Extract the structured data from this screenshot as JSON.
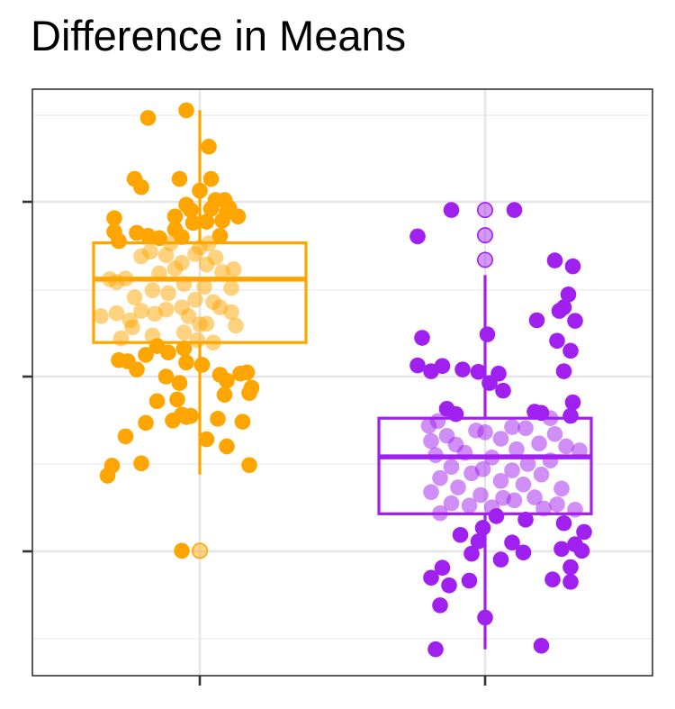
{
  "title": "Difference in Means",
  "chart_data": {
    "type": "box-jitter",
    "title": "Difference in Means",
    "xlabel": "",
    "ylabel": "",
    "x_tick_labels": [],
    "y_tick_labels": [],
    "grid": true,
    "legend": "none",
    "y_unit_note": "values read in pixel-free plot units; 0 = bottom of plot panel, 100 = top",
    "ylim": [
      0,
      100
    ],
    "groups": [
      {
        "color": "#FFA500",
        "box": {
          "lower_whisker": 34.3,
          "q1": 56.8,
          "median": 67.6,
          "q3": 73.8,
          "upper_whisker": 96.4
        },
        "outliers": [
          21.3
        ],
        "points": [
          [
            0.27,
            95.1
          ],
          [
            0.44,
            96.4
          ],
          [
            0.54,
            90.2
          ],
          [
            0.21,
            84.7
          ],
          [
            0.41,
            84.7
          ],
          [
            0.55,
            84.7
          ],
          [
            0.24,
            83.3
          ],
          [
            0.5,
            82.7
          ],
          [
            0.61,
            81.1
          ],
          [
            0.57,
            81.1
          ],
          [
            0.44,
            80.3
          ],
          [
            0.63,
            79.8
          ],
          [
            0.55,
            79.6
          ],
          [
            0.46,
            79.4
          ],
          [
            0.39,
            78.3
          ],
          [
            0.12,
            78.0
          ],
          [
            0.6,
            77.6
          ],
          [
            0.53,
            77.4
          ],
          [
            0.67,
            78.3
          ],
          [
            0.62,
            79.1
          ],
          [
            0.39,
            76.1
          ],
          [
            0.47,
            77.2
          ],
          [
            0.22,
            75.5
          ],
          [
            0.42,
            74.8
          ],
          [
            0.12,
            75.7
          ],
          [
            0.59,
            75.0
          ],
          [
            0.14,
            74.1
          ],
          [
            0.37,
            73.7
          ],
          [
            0.32,
            74.6
          ],
          [
            0.27,
            75.0
          ],
          [
            0.54,
            73.7
          ],
          [
            0.5,
            73.0
          ],
          [
            0.28,
            72.3
          ],
          [
            0.24,
            71.5
          ],
          [
            0.35,
            71.7
          ],
          [
            0.48,
            71.9
          ],
          [
            0.57,
            71.3
          ],
          [
            0.42,
            70.4
          ],
          [
            0.53,
            70.1
          ],
          [
            0.39,
            69.4
          ],
          [
            0.65,
            69.3
          ],
          [
            0.6,
            68.8
          ],
          [
            0.32,
            68.6
          ],
          [
            0.17,
            67.7
          ],
          [
            0.13,
            67.1
          ],
          [
            0.1,
            67.6
          ],
          [
            0.43,
            66.8
          ],
          [
            0.64,
            66.1
          ],
          [
            0.52,
            66.3
          ],
          [
            0.29,
            65.7
          ],
          [
            0.36,
            65.2
          ],
          [
            0.21,
            64.5
          ],
          [
            0.48,
            64.1
          ],
          [
            0.56,
            63.7
          ],
          [
            0.42,
            62.8
          ],
          [
            0.24,
            62.2
          ],
          [
            0.35,
            62.4
          ],
          [
            0.59,
            62.8
          ],
          [
            0.13,
            61.8
          ],
          [
            0.3,
            61.7
          ],
          [
            0.64,
            62.0
          ],
          [
            0.45,
            61.3
          ],
          [
            0.19,
            60.6
          ],
          [
            0.5,
            59.9
          ],
          [
            0.53,
            60.0
          ],
          [
            0.66,
            59.7
          ],
          [
            0.2,
            59.4
          ],
          [
            0.06,
            61.3
          ],
          [
            0.43,
            58.5
          ],
          [
            0.29,
            58.0
          ],
          [
            0.15,
            57.5
          ],
          [
            0.49,
            57.2
          ],
          [
            0.56,
            56.8
          ],
          [
            0.31,
            56.2
          ],
          [
            0.43,
            55.8
          ],
          [
            0.36,
            55.1
          ],
          [
            0.26,
            54.7
          ],
          [
            0.44,
            53.4
          ],
          [
            0.22,
            52.2
          ],
          [
            0.14,
            53.8
          ],
          [
            0.18,
            53.6
          ],
          [
            0.51,
            53.0
          ],
          [
            0.68,
            51.5
          ],
          [
            0.71,
            51.7
          ],
          [
            0.35,
            51.0
          ],
          [
            0.59,
            51.3
          ],
          [
            0.41,
            49.9
          ],
          [
            0.62,
            50.3
          ],
          [
            0.73,
            49.1
          ],
          [
            0.61,
            47.9
          ],
          [
            0.72,
            48.2
          ],
          [
            0.4,
            47.1
          ],
          [
            0.31,
            46.8
          ],
          [
            0.42,
            44.5
          ],
          [
            0.44,
            44.1
          ],
          [
            0.46,
            44.3
          ],
          [
            0.38,
            43.5
          ],
          [
            0.26,
            43.1
          ],
          [
            0.58,
            43.8
          ],
          [
            0.69,
            43.3
          ],
          [
            0.17,
            40.8
          ],
          [
            0.62,
            39.1
          ],
          [
            0.53,
            40.3
          ],
          [
            0.24,
            36.2
          ],
          [
            0.11,
            35.8
          ],
          [
            0.09,
            34.1
          ],
          [
            0.72,
            35.9
          ],
          [
            0.42,
            21.3
          ]
        ]
      },
      {
        "color": "#A020F0",
        "box": {
          "lower_whisker": 4.5,
          "q1": 27.6,
          "median": 37.3,
          "q3": 43.9,
          "upper_whisker": 68.3
        },
        "outliers": [
          79.4,
          75.1,
          70.9
        ],
        "points": [
          [
            0.63,
            79.4
          ],
          [
            0.35,
            79.4
          ],
          [
            0.2,
            74.9
          ],
          [
            0.81,
            70.8
          ],
          [
            0.89,
            69.8
          ],
          [
            0.85,
            62.8
          ],
          [
            0.83,
            62.2
          ],
          [
            0.73,
            60.6
          ],
          [
            0.9,
            60.5
          ],
          [
            0.87,
            65.0
          ],
          [
            0.22,
            57.6
          ],
          [
            0.51,
            58.2
          ],
          [
            0.82,
            57.1
          ],
          [
            0.88,
            55.4
          ],
          [
            0.2,
            52.9
          ],
          [
            0.31,
            52.8
          ],
          [
            0.4,
            52.2
          ],
          [
            0.26,
            51.9
          ],
          [
            0.47,
            51.8
          ],
          [
            0.85,
            51.9
          ],
          [
            0.56,
            51.5
          ],
          [
            0.52,
            49.9
          ],
          [
            0.58,
            48.6
          ],
          [
            0.89,
            46.6
          ],
          [
            0.33,
            45.5
          ],
          [
            0.37,
            44.6
          ],
          [
            0.72,
            45.0
          ],
          [
            0.75,
            44.8
          ],
          [
            0.88,
            44.3
          ],
          [
            0.29,
            43.4
          ],
          [
            0.79,
            43.9
          ],
          [
            0.25,
            42.6
          ],
          [
            0.62,
            42.4
          ],
          [
            0.68,
            42.2
          ],
          [
            0.46,
            41.8
          ],
          [
            0.5,
            41.5
          ],
          [
            0.81,
            41.2
          ],
          [
            0.33,
            40.9
          ],
          [
            0.57,
            40.4
          ],
          [
            0.26,
            40.0
          ],
          [
            0.74,
            39.6
          ],
          [
            0.37,
            39.4
          ],
          [
            0.86,
            39.1
          ],
          [
            0.64,
            38.6
          ],
          [
            0.41,
            38.0
          ],
          [
            0.92,
            38.4
          ],
          [
            0.28,
            37.6
          ],
          [
            0.53,
            37.2
          ],
          [
            0.79,
            36.7
          ],
          [
            0.69,
            36.1
          ],
          [
            0.35,
            35.6
          ],
          [
            0.49,
            35.2
          ],
          [
            0.62,
            35.0
          ],
          [
            0.44,
            34.5
          ],
          [
            0.75,
            34.3
          ],
          [
            0.3,
            33.7
          ],
          [
            0.57,
            33.2
          ],
          [
            0.67,
            32.6
          ],
          [
            0.38,
            32.1
          ],
          [
            0.84,
            31.9
          ],
          [
            0.26,
            31.3
          ],
          [
            0.48,
            30.8
          ],
          [
            0.72,
            30.4
          ],
          [
            0.58,
            30.3
          ],
          [
            0.63,
            29.9
          ],
          [
            0.35,
            29.4
          ],
          [
            0.43,
            29.0
          ],
          [
            0.82,
            29.2
          ],
          [
            0.53,
            28.7
          ],
          [
            0.76,
            28.5
          ],
          [
            0.9,
            28.3
          ],
          [
            0.3,
            27.7
          ],
          [
            0.55,
            27.2
          ],
          [
            0.68,
            26.6
          ],
          [
            0.49,
            25.2
          ],
          [
            0.85,
            26.0
          ],
          [
            0.39,
            24.0
          ],
          [
            0.94,
            24.5
          ],
          [
            0.47,
            22.9
          ],
          [
            0.62,
            22.7
          ],
          [
            0.9,
            22.4
          ],
          [
            0.84,
            21.6
          ],
          [
            0.44,
            20.8
          ],
          [
            0.67,
            21.0
          ],
          [
            0.93,
            21.3
          ],
          [
            0.57,
            19.8
          ],
          [
            0.88,
            18.5
          ],
          [
            0.31,
            18.4
          ],
          [
            0.26,
            16.7
          ],
          [
            0.34,
            15.4
          ],
          [
            0.43,
            16.2
          ],
          [
            0.8,
            16.4
          ],
          [
            0.88,
            16.0
          ],
          [
            0.3,
            12.0
          ],
          [
            0.5,
            9.9
          ],
          [
            0.28,
            4.5
          ],
          [
            0.75,
            5.1
          ]
        ]
      }
    ]
  }
}
